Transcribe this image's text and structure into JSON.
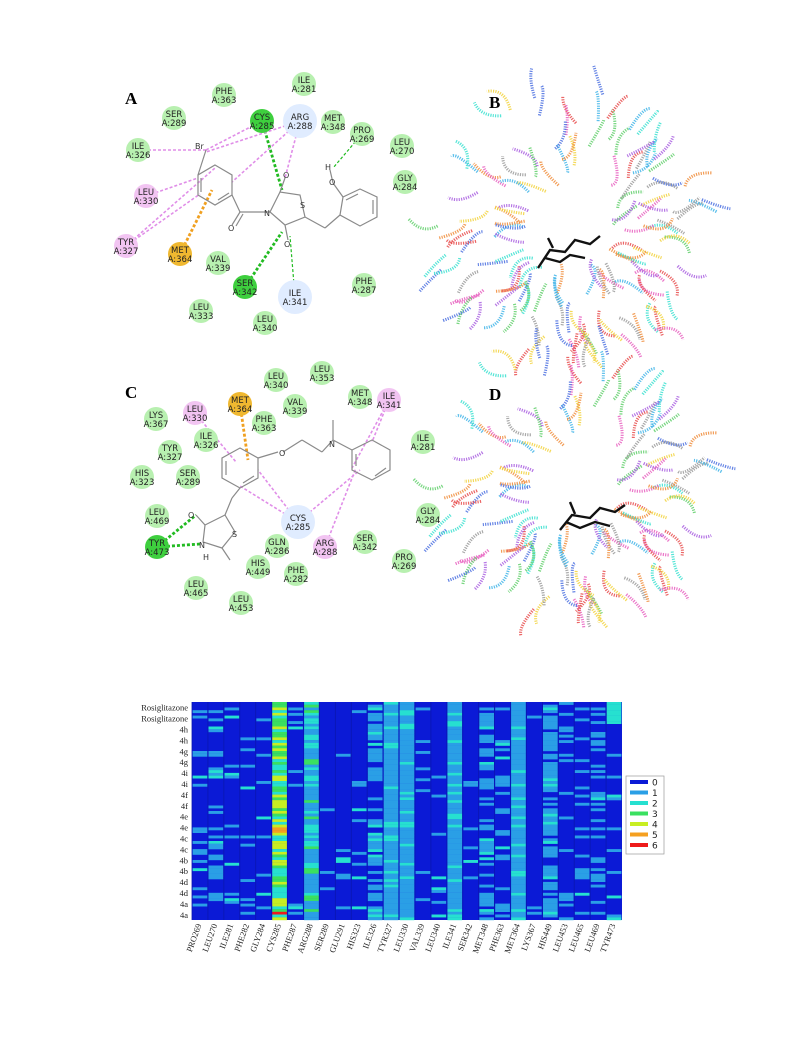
{
  "panels": {
    "A": {
      "label": "A",
      "residues": [
        {
          "name": "PHE",
          "num": "A:363",
          "kind": "vdw"
        },
        {
          "name": "ILE",
          "num": "A:281",
          "kind": "vdw"
        },
        {
          "name": "SER",
          "num": "A:289",
          "kind": "vdw"
        },
        {
          "name": "CYS",
          "num": "A:285",
          "kind": "hbond"
        },
        {
          "name": "ARG",
          "num": "A:288",
          "kind": "weak"
        },
        {
          "name": "MET",
          "num": "A:348",
          "kind": "vdw"
        },
        {
          "name": "PRO",
          "num": "A:269",
          "kind": "vdw"
        },
        {
          "name": "LEU",
          "num": "A:270",
          "kind": "vdw"
        },
        {
          "name": "ILE",
          "num": "A:326",
          "kind": "vdw"
        },
        {
          "name": "GLY",
          "num": "A:284",
          "kind": "vdw"
        },
        {
          "name": "LEU",
          "num": "A:330",
          "kind": "alkyl"
        },
        {
          "name": "TYR",
          "num": "A:327",
          "kind": "alkyl"
        },
        {
          "name": "MET",
          "num": "A:364",
          "kind": "sulfur"
        },
        {
          "name": "VAL",
          "num": "A:339",
          "kind": "vdw"
        },
        {
          "name": "SER",
          "num": "A:342",
          "kind": "hbond"
        },
        {
          "name": "ILE",
          "num": "A:341",
          "kind": "weak"
        },
        {
          "name": "PHE",
          "num": "A:287",
          "kind": "vdw"
        },
        {
          "name": "LEU",
          "num": "A:333",
          "kind": "vdw"
        },
        {
          "name": "LEU",
          "num": "A:340",
          "kind": "vdw"
        }
      ],
      "atoms": [
        "Br",
        "N",
        "S",
        "O",
        "O",
        "O",
        "O",
        "H"
      ]
    },
    "B": {
      "label": "B"
    },
    "C": {
      "label": "C",
      "residues": [
        {
          "name": "LEU",
          "num": "A:340",
          "kind": "vdw"
        },
        {
          "name": "LEU",
          "num": "A:353",
          "kind": "vdw"
        },
        {
          "name": "MET",
          "num": "A:364",
          "kind": "sulfur"
        },
        {
          "name": "MET",
          "num": "A:348",
          "kind": "vdw"
        },
        {
          "name": "LYS",
          "num": "A:367",
          "kind": "vdw"
        },
        {
          "name": "LEU",
          "num": "A:330",
          "kind": "alkyl"
        },
        {
          "name": "VAL",
          "num": "A:339",
          "kind": "vdw"
        },
        {
          "name": "ILE",
          "num": "A:341",
          "kind": "alkyl"
        },
        {
          "name": "PHE",
          "num": "A:363",
          "kind": "vdw"
        },
        {
          "name": "TYR",
          "num": "A:327",
          "kind": "vdw"
        },
        {
          "name": "ILE",
          "num": "A:326",
          "kind": "vdw"
        },
        {
          "name": "ILE",
          "num": "A:281",
          "kind": "vdw"
        },
        {
          "name": "HIS",
          "num": "A:323",
          "kind": "vdw"
        },
        {
          "name": "SER",
          "num": "A:289",
          "kind": "vdw"
        },
        {
          "name": "LEU",
          "num": "A:469",
          "kind": "vdw"
        },
        {
          "name": "CYS",
          "num": "A:285",
          "kind": "weak"
        },
        {
          "name": "GLY",
          "num": "A:284",
          "kind": "vdw"
        },
        {
          "name": "TYR",
          "num": "A:473",
          "kind": "hbond"
        },
        {
          "name": "GLN",
          "num": "A:286",
          "kind": "vdw"
        },
        {
          "name": "ARG",
          "num": "A:288",
          "kind": "alkyl"
        },
        {
          "name": "SER",
          "num": "A:342",
          "kind": "vdw"
        },
        {
          "name": "PRO",
          "num": "A:269",
          "kind": "vdw"
        },
        {
          "name": "HIS",
          "num": "A:449",
          "kind": "vdw"
        },
        {
          "name": "PHE",
          "num": "A:282",
          "kind": "vdw"
        },
        {
          "name": "LEU",
          "num": "A:465",
          "kind": "vdw"
        },
        {
          "name": "LEU",
          "num": "A:453",
          "kind": "vdw"
        }
      ],
      "atoms": [
        "O",
        "N",
        "N",
        "S",
        "O",
        "H"
      ]
    },
    "D": {
      "label": "D"
    }
  },
  "colors": {
    "vdw": "#b8f0b0",
    "hbond": "#3ecf3e",
    "weak": "#e0ecff",
    "alkyl": "#f2c4f2",
    "sulfur": "#f0b830",
    "hbond_line": "#22bb22",
    "alkyl_line": "#e08ee8",
    "sulfur_line": "#f0a020"
  },
  "heatmap": {
    "row_labels": [
      "Rosiglitazone",
      "Rosiglitazone",
      "4h",
      "4h",
      "4g",
      "4g",
      "4i",
      "4i",
      "4f",
      "4f",
      "4e",
      "4e",
      "4c",
      "4c",
      "4b",
      "4b",
      "4d",
      "4d",
      "4a",
      "4a"
    ],
    "col_labels": [
      "PRO269",
      "LEU270",
      "ILE281",
      "PHE282",
      "GLY284",
      "CYS285",
      "PHE287",
      "ARG288",
      "SER289",
      "GLU291",
      "HIS323",
      "ILE326",
      "TYR327",
      "LEU330",
      "VAL339",
      "LEU340",
      "ILE341",
      "SER342",
      "MET348",
      "PHE363",
      "MET364",
      "LYS367",
      "HIS449",
      "LEU453",
      "LEU465",
      "LEU469",
      "TYR473"
    ],
    "legend": [
      "0",
      "1",
      "2",
      "3",
      "4",
      "5",
      "6"
    ],
    "colormap": [
      "#0b1ad6",
      "#2a9fe6",
      "#26e0d0",
      "#3ae060",
      "#c8ee22",
      "#f5a020",
      "#ee1a1a"
    ]
  }
}
